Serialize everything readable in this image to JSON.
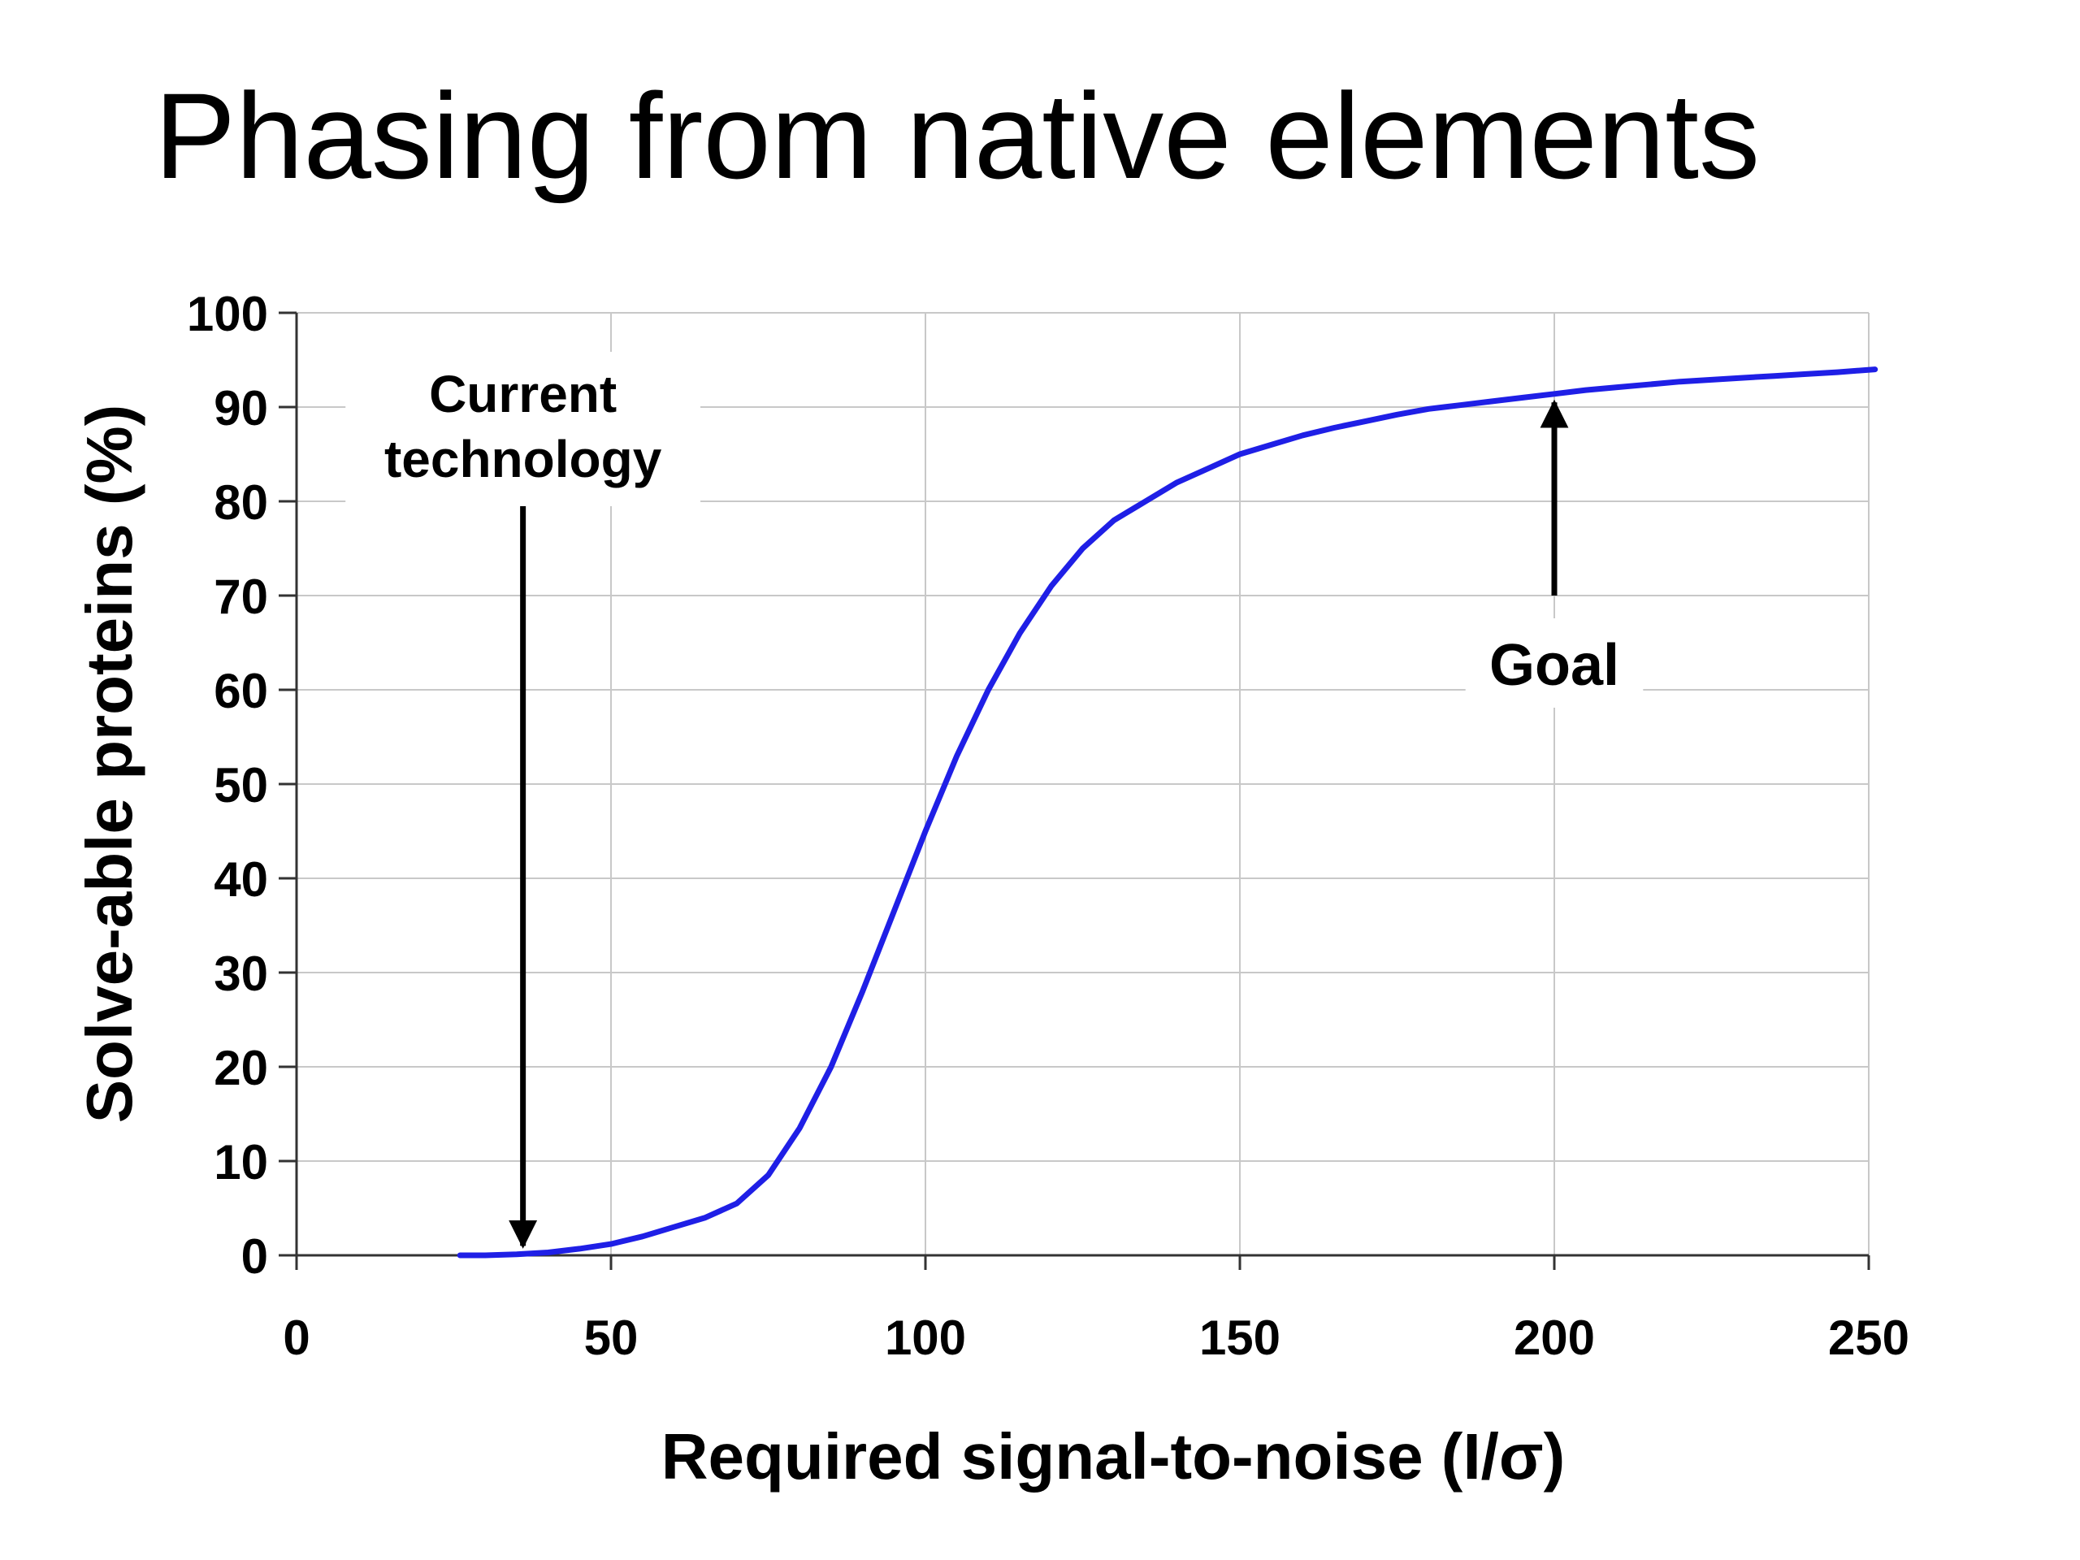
{
  "slide": {
    "title": "Phasing from native elements"
  },
  "colors": {
    "background": "#ffffff",
    "curve": "#1f1fe6",
    "grid": "#c8c8c8",
    "axis": "#333333",
    "text": "#000000"
  },
  "chart_data": {
    "type": "line",
    "title": "",
    "xlabel": "Required signal-to-noise (I/σ)",
    "ylabel": "Solve-able proteins (%)",
    "xlim": [
      0,
      250
    ],
    "ylim": [
      0,
      100
    ],
    "xticks": [
      0,
      50,
      100,
      150,
      200,
      250
    ],
    "yticks": [
      0,
      10,
      20,
      30,
      40,
      50,
      60,
      70,
      80,
      90,
      100
    ],
    "grid": true,
    "legend": "none",
    "series": [
      {
        "x": [
          26,
          30,
          35,
          40,
          45,
          50,
          55,
          60,
          65,
          70,
          75,
          80,
          85,
          90,
          95,
          100,
          105,
          110,
          115,
          120,
          125,
          130,
          135,
          140,
          145,
          150,
          155,
          160,
          165,
          170,
          175,
          180,
          185,
          190,
          195,
          200,
          205,
          210,
          215,
          220,
          225,
          230,
          235,
          240,
          245,
          251
        ],
        "y": [
          0,
          0,
          0.1,
          0.3,
          0.7,
          1.2,
          2,
          3,
          4,
          5.5,
          8.5,
          13.5,
          20,
          28,
          36.5,
          45,
          53,
          60,
          66,
          71,
          75,
          78,
          80,
          82,
          83.5,
          85,
          86,
          87,
          87.8,
          88.5,
          89.2,
          89.8,
          90.2,
          90.6,
          91,
          91.4,
          91.8,
          92.1,
          92.4,
          92.7,
          92.9,
          93.1,
          93.3,
          93.5,
          93.7,
          94
        ]
      }
    ],
    "annotations": [
      {
        "text_lines": [
          "Current",
          "technology"
        ],
        "arrow_direction": "down",
        "arrow_x": 36,
        "arrow_from_y": 80,
        "arrow_to_y": 1
      },
      {
        "text_lines": [
          "Goal"
        ],
        "arrow_direction": "up",
        "arrow_x": 200,
        "arrow_from_y": 70,
        "arrow_to_y": 90.5
      }
    ]
  }
}
